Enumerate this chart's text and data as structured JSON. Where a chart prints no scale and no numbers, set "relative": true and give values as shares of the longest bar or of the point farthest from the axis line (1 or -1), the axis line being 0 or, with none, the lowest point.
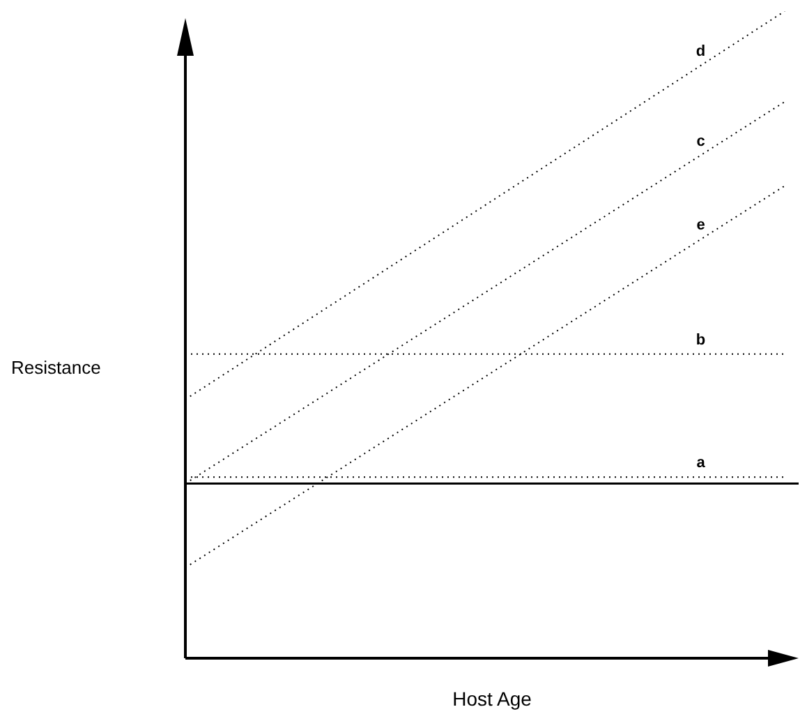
{
  "chart_data": {
    "type": "line",
    "xlabel": "Host Age",
    "ylabel": "Resistance",
    "relative": true,
    "categories": [
      null,
      null
    ],
    "legend": false,
    "line_style": "dotted",
    "marker": "none",
    "series": [
      {
        "name": "a",
        "color": "#000000",
        "values": [
          0.28,
          0.28
        ]
      },
      {
        "name": "b",
        "color": "#000000",
        "values": [
          0.47,
          0.47
        ]
      },
      {
        "name": "c",
        "color": "#000000",
        "values": [
          0.27,
          0.86
        ]
      },
      {
        "name": "d",
        "color": "#000000",
        "values": [
          0.4,
          1
        ]
      },
      {
        "name": "e",
        "color": "#000000",
        "values": [
          0.14,
          0.73
        ]
      }
    ],
    "ref_lines": [
      {
        "axis": "y",
        "value": 0.27,
        "label": null,
        "color": "#000000",
        "line_style": "solid"
      }
    ]
  }
}
